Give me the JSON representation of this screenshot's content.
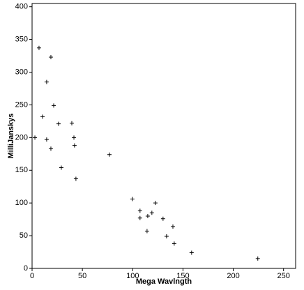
{
  "chart_data": {
    "type": "scatter",
    "x_label": "Mega Wavlngth",
    "y_label": "MilliJanskys",
    "x": [
      6.9,
      18.7,
      14.5,
      21.5,
      10.4,
      26.3,
      39.5,
      2.8,
      41.6,
      14.5,
      42.2,
      18.7,
      76.9,
      29.1,
      43.6,
      99.7,
      107.3,
      119.1,
      122.6,
      107.3,
      115.0,
      130.2,
      140.0,
      114.3,
      133.7,
      141.3,
      158.6,
      224.4
    ],
    "values": [
      337,
      323,
      285,
      249,
      232,
      221,
      222,
      200,
      200,
      197,
      188,
      183,
      174,
      154,
      137,
      106,
      88,
      85,
      100,
      77,
      80,
      76,
      64,
      57,
      49,
      38,
      24,
      15
    ],
    "color": "#000000",
    "xlim": [
      0,
      262
    ],
    "xticks": [
      0,
      50,
      100,
      150,
      200,
      250
    ],
    "ylim": [
      0,
      405
    ],
    "yticks": [
      0,
      50,
      100,
      150,
      200,
      250,
      300,
      350,
      400
    ]
  }
}
